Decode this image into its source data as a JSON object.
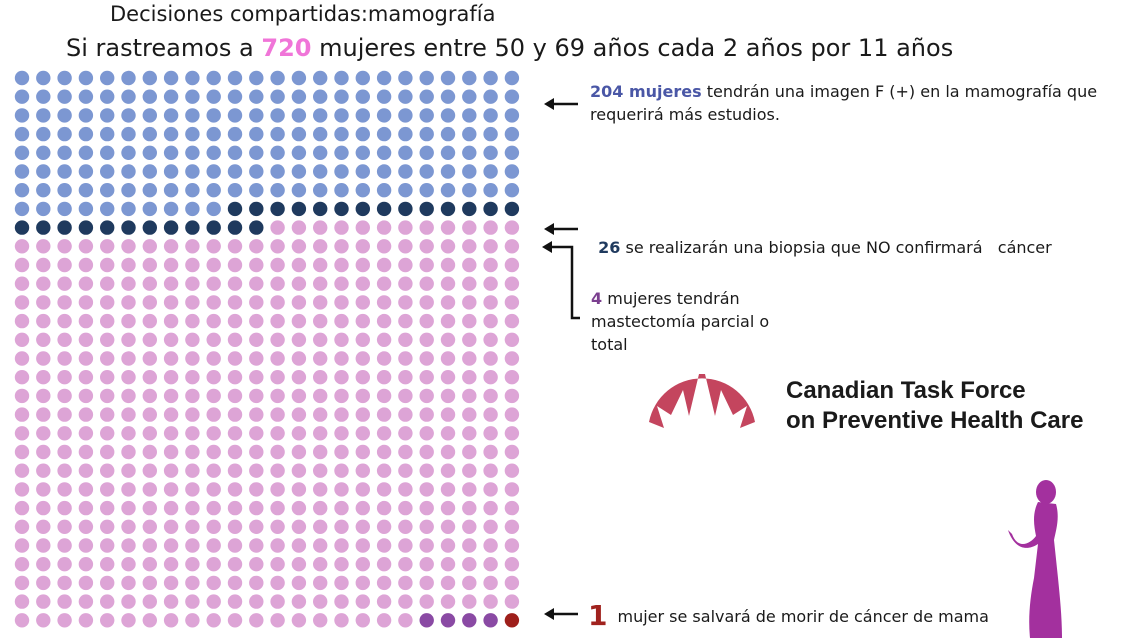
{
  "header": {
    "title": "Decisiones compartidas:mamografía",
    "subtitle_prefix": "Si rastreamos a ",
    "subtitle_count": "720",
    "subtitle_suffix": " mujeres entre 50 y 69 años cada 2 años por 11 años"
  },
  "grid": {
    "columns": 24,
    "rows": 30,
    "total": 720,
    "groups": [
      {
        "key": "false_positive",
        "count": 178,
        "color": "#7c97d2"
      },
      {
        "key": "biopsy_no_cancer",
        "count": 26,
        "color": "#1f3a5e"
      },
      {
        "key": "no_finding",
        "count": 511,
        "color": "#dda4d6"
      },
      {
        "key": "mastectomy",
        "count": 4,
        "color": "#8a4aa4"
      },
      {
        "key": "saved",
        "count": 1,
        "color": "#9e1f1b"
      }
    ]
  },
  "annotations": {
    "false_positive": {
      "number": "204 mujeres",
      "text": " tendrán una imagen F (+) en la mamografía que requerirá más estudios."
    },
    "biopsy": {
      "number": "26",
      "text": " se realizarán una biopsia que NO confirmará   cáncer"
    },
    "mastectomy": {
      "number": "4",
      "text": " mujeres tendrán mastectomía parcial o total"
    },
    "saved": {
      "number": "1",
      "text": "mujer se salvará de morir de cáncer de mama"
    }
  },
  "logo": {
    "line1": "Canadian Task Force",
    "line2": "on Preventive Health Care",
    "color": "#c4455e"
  },
  "silhouette": {
    "color": "#a3309e"
  }
}
